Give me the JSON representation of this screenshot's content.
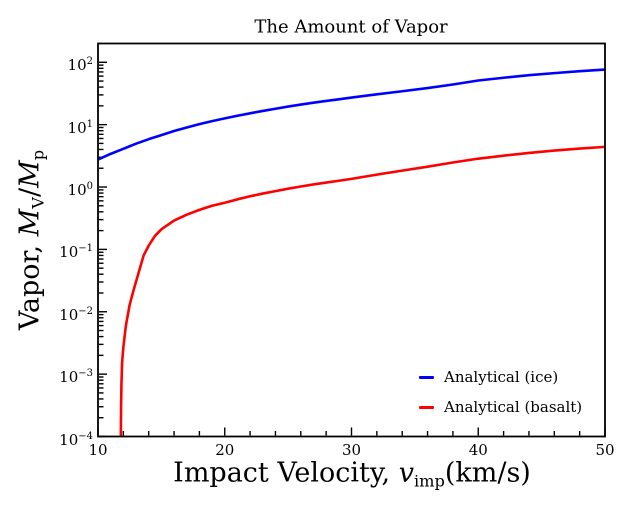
{
  "figure": {
    "background": "#ffffff"
  },
  "chart_data": {
    "type": "line",
    "title": "The Amount of Vapor",
    "xlabel": "Impact Velocity, v_imp(km/s)",
    "xlabel_parts": {
      "prefix": "Impact Velocity, ",
      "variable": "v",
      "subscript": "imp",
      "suffix": "(km/s)"
    },
    "ylabel": "Vapor, M_V/M_p",
    "ylabel_parts": {
      "prefix": "Vapor, ",
      "m1": "M",
      "sub1": "V",
      "divider": "/",
      "m2": "M",
      "sub2": "p"
    },
    "xscale": "linear",
    "yscale": "log",
    "xlim": [
      10,
      50
    ],
    "ylim": [
      0.0001,
      200
    ],
    "x_major_ticks": [
      10,
      20,
      30,
      40,
      50
    ],
    "x_tick_labels": [
      "10",
      "20",
      "30",
      "40",
      "50"
    ],
    "x_minor_tick_step": 2,
    "y_major_tick_exponents": [
      2,
      1,
      0,
      -1,
      -2,
      -3,
      -4
    ],
    "grid": false,
    "axis_color": "#000000",
    "legend": {
      "position": "lower right",
      "frame": false
    },
    "series": [
      {
        "name": "Analytical (ice)",
        "color": "#0000ff",
        "style": "solid",
        "points": [
          [
            10,
            2.75
          ],
          [
            11,
            3.4
          ],
          [
            12,
            4.1
          ],
          [
            13,
            4.95
          ],
          [
            14,
            5.85
          ],
          [
            15,
            6.8
          ],
          [
            16,
            7.9
          ],
          [
            17,
            9.0
          ],
          [
            18,
            10.2
          ],
          [
            19,
            11.4
          ],
          [
            20,
            12.6
          ],
          [
            21,
            13.9
          ],
          [
            22,
            15.2
          ],
          [
            23,
            16.6
          ],
          [
            24,
            18.0
          ],
          [
            25,
            19.5
          ],
          [
            26,
            21.0
          ],
          [
            27,
            22.5
          ],
          [
            28,
            24.0
          ],
          [
            29,
            25.5
          ],
          [
            30,
            27.2
          ],
          [
            32,
            30.6
          ],
          [
            34,
            34.3
          ],
          [
            36,
            38.6
          ],
          [
            38,
            44.0
          ],
          [
            40,
            51.0
          ],
          [
            42,
            56.5
          ],
          [
            44,
            62.0
          ],
          [
            46,
            67.0
          ],
          [
            48,
            72.0
          ],
          [
            50,
            76.5
          ]
        ]
      },
      {
        "name": "Analytical (basalt)",
        "color": "#ff0000",
        "style": "solid",
        "points": [
          [
            11.8,
            0.0001
          ],
          [
            11.82,
            0.0003
          ],
          [
            11.85,
            0.0007
          ],
          [
            11.9,
            0.0015
          ],
          [
            12.0,
            0.0027
          ],
          [
            12.2,
            0.006
          ],
          [
            12.5,
            0.013
          ],
          [
            12.8,
            0.022
          ],
          [
            13.2,
            0.042
          ],
          [
            13.6,
            0.08
          ],
          [
            14.0,
            0.115
          ],
          [
            14.5,
            0.165
          ],
          [
            15,
            0.21
          ],
          [
            16,
            0.29
          ],
          [
            17,
            0.36
          ],
          [
            18,
            0.43
          ],
          [
            19,
            0.5
          ],
          [
            20,
            0.56
          ],
          [
            21,
            0.635
          ],
          [
            22,
            0.71
          ],
          [
            23,
            0.785
          ],
          [
            24,
            0.86
          ],
          [
            25,
            0.94
          ],
          [
            26,
            1.02
          ],
          [
            27,
            1.1
          ],
          [
            28,
            1.18
          ],
          [
            29,
            1.26
          ],
          [
            30,
            1.35
          ],
          [
            32,
            1.58
          ],
          [
            34,
            1.83
          ],
          [
            36,
            2.12
          ],
          [
            38,
            2.47
          ],
          [
            40,
            2.85
          ],
          [
            42,
            3.18
          ],
          [
            44,
            3.52
          ],
          [
            46,
            3.84
          ],
          [
            48,
            4.14
          ],
          [
            50,
            4.4
          ]
        ]
      }
    ]
  }
}
